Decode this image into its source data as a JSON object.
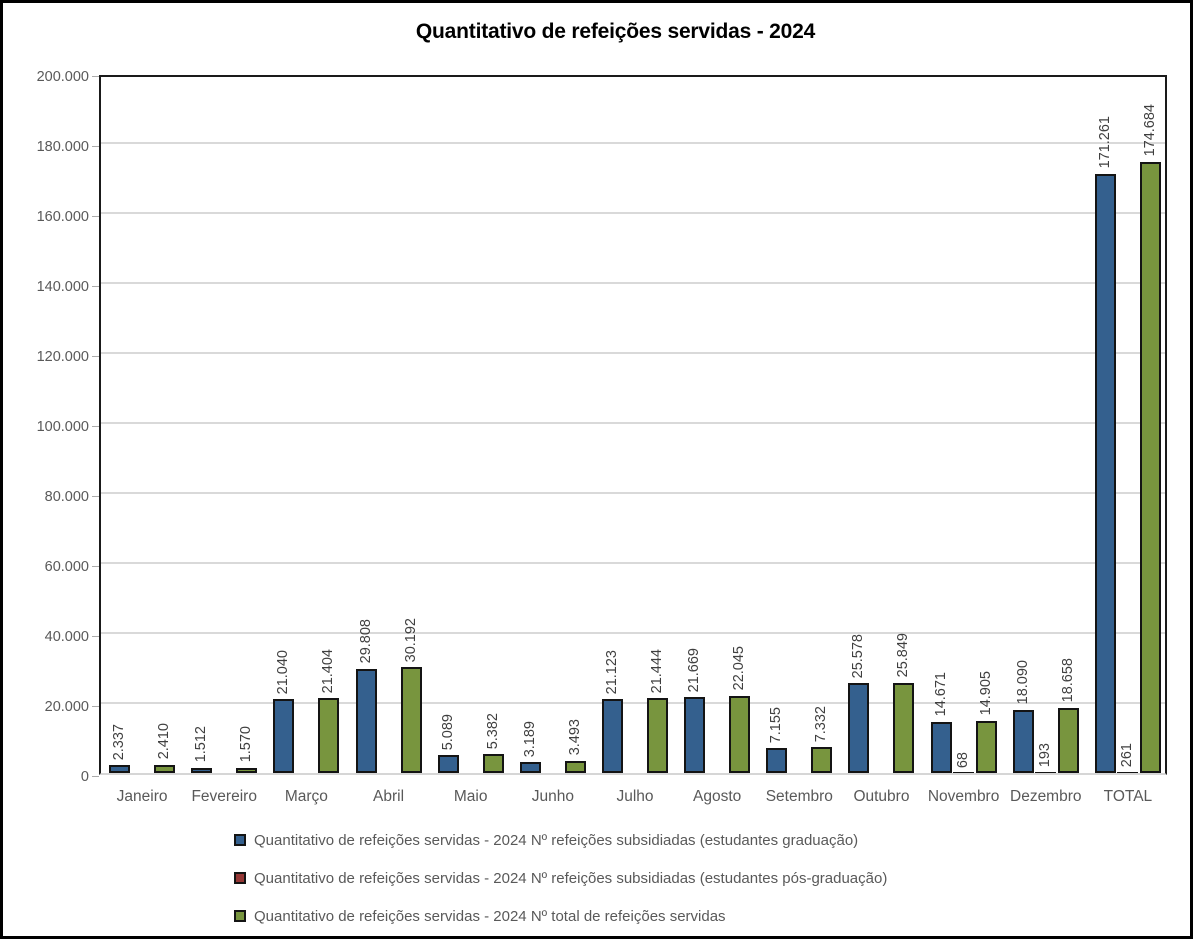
{
  "chart_data": {
    "type": "bar",
    "title": "Quantitativo de refeições servidas - 2024",
    "categories": [
      "Janeiro",
      "Fevereiro",
      "Março",
      "Abril",
      "Maio",
      "Junho",
      "Julho",
      "Agosto",
      "Setembro",
      "Outubro",
      "Novembro",
      "Dezembro",
      "TOTAL"
    ],
    "series": [
      {
        "key": "graduacao",
        "name": "Quantitativo de refeições servidas - 2024 Nº refeições subsidiadas (estudantes graduação)",
        "color": "#34608e",
        "values": [
          2337,
          1512,
          21040,
          29808,
          5089,
          3189,
          21123,
          21669,
          7155,
          25578,
          14671,
          18090,
          171261
        ],
        "labels": [
          "2.337",
          "1.512",
          "21.040",
          "29.808",
          "5.089",
          "3.189",
          "21.123",
          "21.669",
          "7.155",
          "25.578",
          "14.671",
          "18.090",
          "171.261"
        ]
      },
      {
        "key": "pos-graduacao",
        "name": "Quantitativo de refeições servidas - 2024 Nº refeições subsidiadas (estudantes pós-graduação)",
        "color": "#943735",
        "values": [
          0,
          0,
          0,
          0,
          0,
          0,
          0,
          0,
          0,
          0,
          68,
          193,
          261
        ],
        "labels": [
          null,
          null,
          null,
          null,
          null,
          null,
          null,
          null,
          null,
          null,
          "68",
          "193",
          "261"
        ]
      },
      {
        "key": "total",
        "name": "Quantitativo de refeições servidas - 2024 Nº total de refeições servidas",
        "color": "#78953e",
        "values": [
          2410,
          1570,
          21404,
          30192,
          5382,
          3493,
          21444,
          22045,
          7332,
          25849,
          14905,
          18658,
          174684
        ],
        "labels": [
          "2.410",
          "1.570",
          "21.404",
          "30.192",
          "5.382",
          "3.493",
          "21.444",
          "22.045",
          "7.332",
          "25.849",
          "14.905",
          "18.658",
          "174.684"
        ]
      }
    ],
    "ylim": [
      0,
      200000
    ],
    "y_ticks": [
      {
        "v": 0,
        "label": "0"
      },
      {
        "v": 20000,
        "label": "20.000"
      },
      {
        "v": 40000,
        "label": "40.000"
      },
      {
        "v": 60000,
        "label": "60.000"
      },
      {
        "v": 80000,
        "label": "80.000"
      },
      {
        "v": 100000,
        "label": "100.000"
      },
      {
        "v": 120000,
        "label": "120.000"
      },
      {
        "v": 140000,
        "label": "140.000"
      },
      {
        "v": 160000,
        "label": "160.000"
      },
      {
        "v": 180000,
        "label": "180.000"
      },
      {
        "v": 200000,
        "label": "200.000"
      }
    ],
    "grid": true,
    "legend_position": "bottom",
    "colors": {
      "grid": "#d9d9d9",
      "axis_text": "#595959",
      "data_label": "#3f3f3f",
      "plot_border": "#1a1a1a",
      "bar_border": "#141414",
      "baseline": "#d6d6d6"
    }
  }
}
